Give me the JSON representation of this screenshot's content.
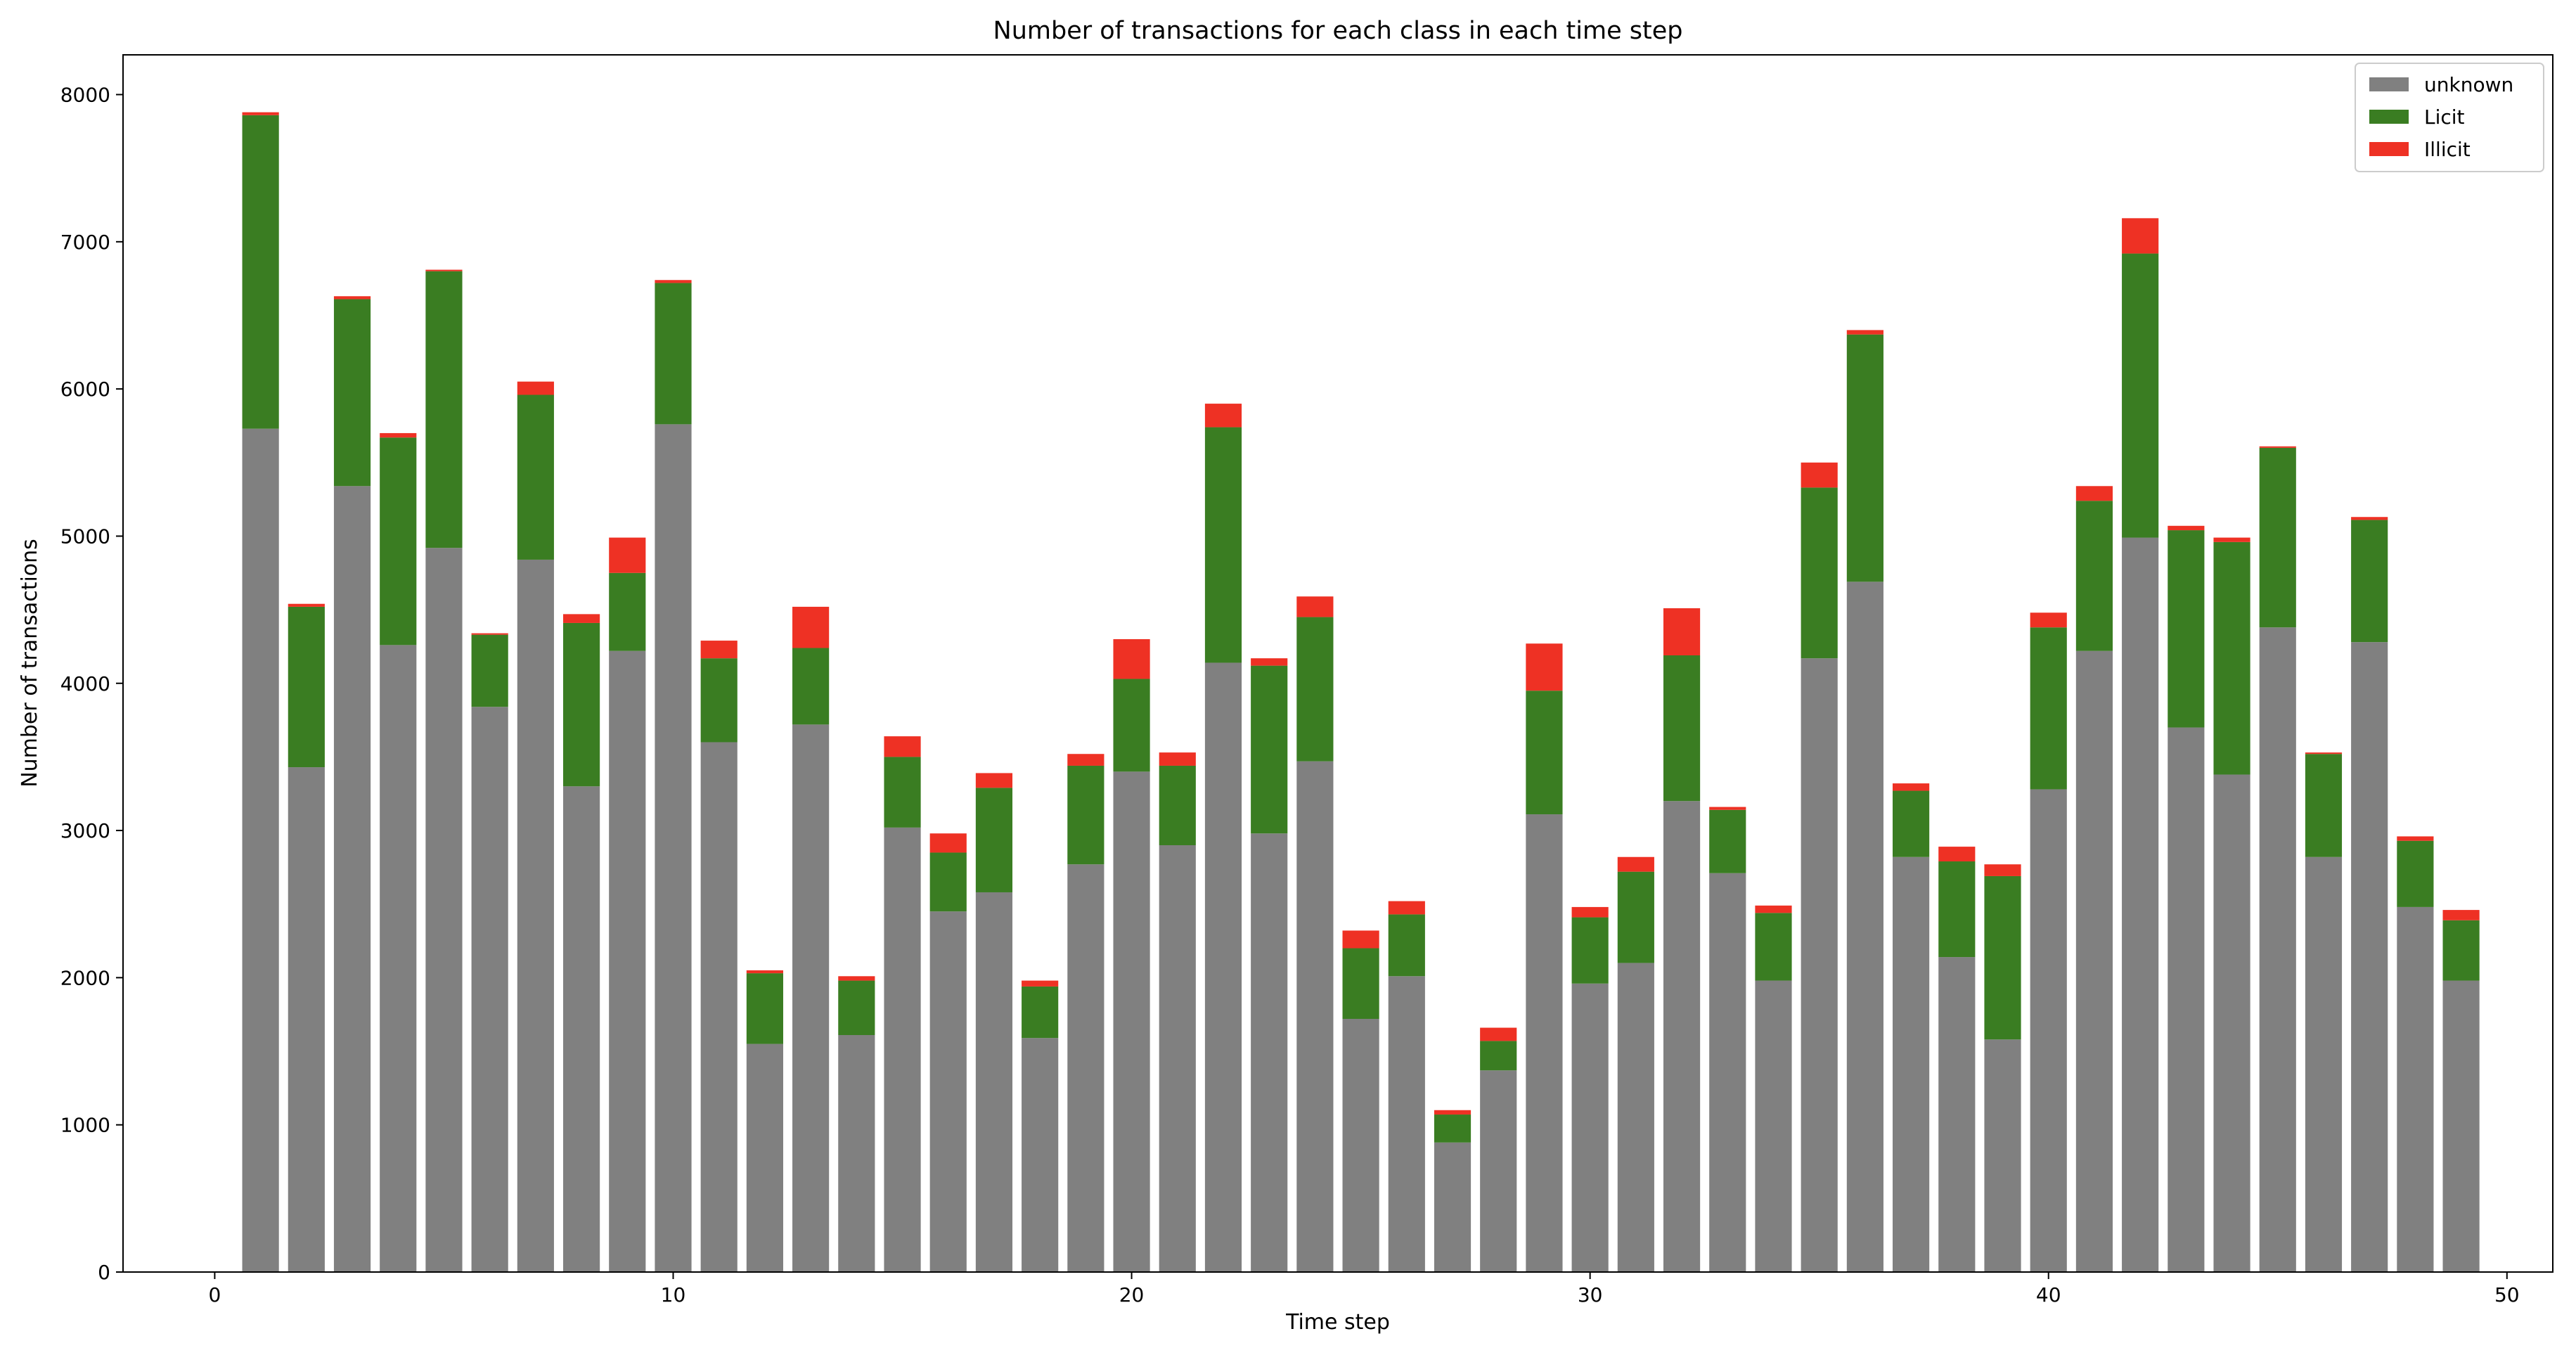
{
  "chart_data": {
    "type": "bar",
    "stacked": true,
    "title": "Number of transactions for each class in each time step",
    "xlabel": "Time step",
    "ylabel": "Number of transactions",
    "xlim": [
      -2,
      51
    ],
    "ylim": [
      0,
      8270
    ],
    "xticks": [
      0,
      10,
      20,
      30,
      40,
      50
    ],
    "yticks": [
      0,
      1000,
      2000,
      3000,
      4000,
      5000,
      6000,
      7000,
      8000
    ],
    "grid": false,
    "legend_position": "top-right",
    "x": [
      1,
      2,
      3,
      4,
      5,
      6,
      7,
      8,
      9,
      10,
      11,
      12,
      13,
      14,
      15,
      16,
      17,
      18,
      19,
      20,
      21,
      22,
      23,
      24,
      25,
      26,
      27,
      28,
      29,
      30,
      31,
      32,
      33,
      34,
      35,
      36,
      37,
      38,
      39,
      40,
      41,
      42,
      43,
      44,
      45,
      46,
      47,
      48,
      49
    ],
    "series": [
      {
        "name": "unknown",
        "color": "#808080",
        "values": [
          5730,
          3430,
          5340,
          4260,
          4920,
          3840,
          4840,
          3300,
          4220,
          5760,
          3600,
          1550,
          3720,
          1610,
          3020,
          2450,
          2580,
          1590,
          2770,
          3400,
          2900,
          4140,
          2980,
          3470,
          1720,
          2010,
          880,
          1370,
          3110,
          1960,
          2100,
          3200,
          2710,
          1980,
          4170,
          4690,
          2820,
          2140,
          1580,
          3280,
          4220,
          4990,
          3700,
          3380,
          4380,
          2820,
          4280,
          2480,
          1980
        ]
      },
      {
        "name": "Licit",
        "color": "#3a7d22",
        "values": [
          2130,
          1090,
          1270,
          1410,
          1880,
          490,
          1120,
          1110,
          530,
          960,
          570,
          480,
          520,
          370,
          480,
          400,
          710,
          350,
          670,
          630,
          540,
          1600,
          1140,
          980,
          480,
          420,
          190,
          200,
          840,
          450,
          620,
          990,
          430,
          460,
          1160,
          1680,
          450,
          650,
          1110,
          1100,
          1020,
          1930,
          1340,
          1580,
          1220,
          700,
          830,
          450,
          410
        ]
      },
      {
        "name": "Illicit",
        "color": "#ee3124",
        "values": [
          20,
          20,
          20,
          30,
          10,
          10,
          90,
          60,
          240,
          20,
          120,
          20,
          280,
          30,
          140,
          130,
          100,
          40,
          80,
          270,
          90,
          160,
          50,
          140,
          120,
          90,
          30,
          90,
          320,
          70,
          100,
          320,
          20,
          50,
          170,
          30,
          50,
          100,
          80,
          100,
          100,
          240,
          30,
          30,
          10,
          10,
          20,
          30,
          70
        ]
      }
    ]
  }
}
